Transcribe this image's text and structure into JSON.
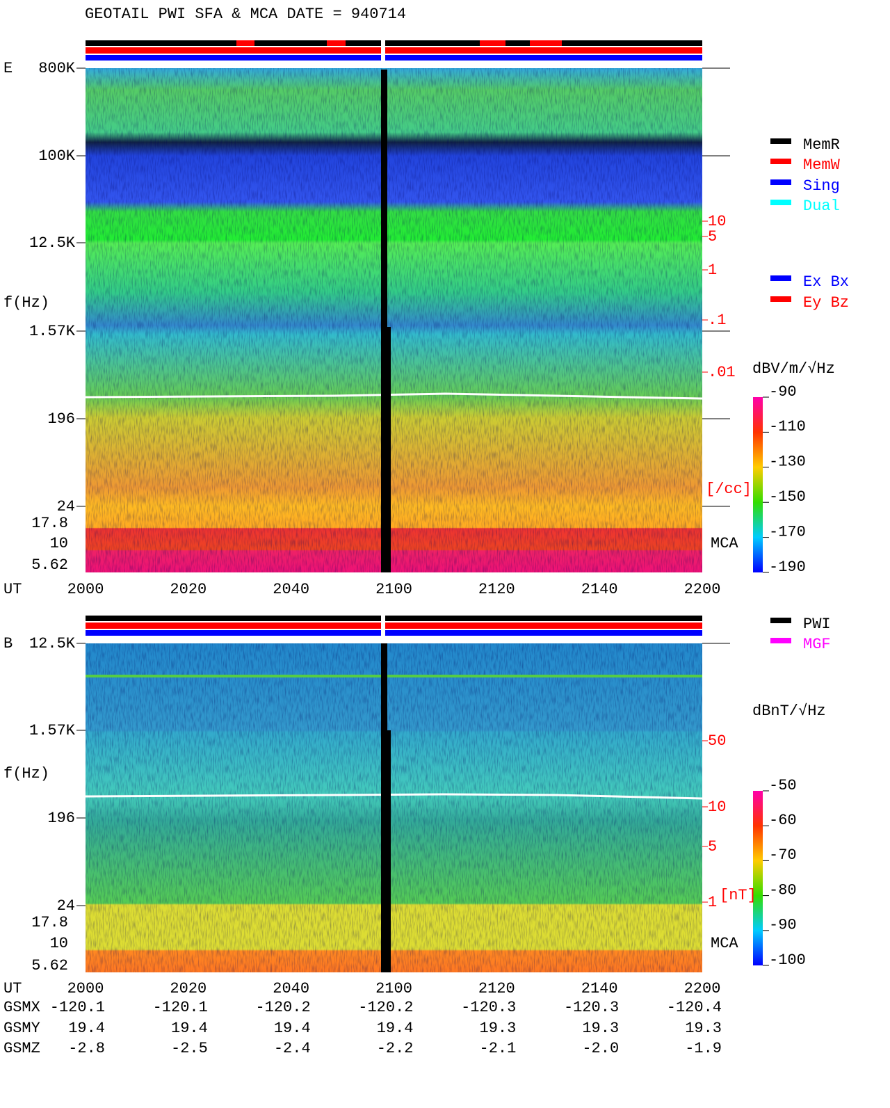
{
  "title": "GEOTAIL   PWI SFA & MCA   DATE = 940714",
  "panels": [
    {
      "label": "E",
      "y_axis_label": "f(Hz)",
      "freq_ticks": [
        "800K",
        "100K",
        "12.5K",
        "1.57K",
        "196",
        "24"
      ],
      "mca_ticks": [
        "17.8",
        "10",
        "5.62"
      ],
      "mca_label": "MCA",
      "x_axis_label": "UT",
      "x_ticks": [
        "2000",
        "2020",
        "2040",
        "2100",
        "2120",
        "2140",
        "2200"
      ],
      "right_ticks": [
        "10",
        "5",
        "1",
        ".1",
        ".01"
      ],
      "right_unit": "[/cc]",
      "colorbar_label": "dBV/m/√Hz",
      "colorbar_ticks": [
        -90,
        -110,
        -130,
        -150,
        -170,
        -190
      ],
      "legend": [
        {
          "name": "MemR",
          "color": "#000000"
        },
        {
          "name": "MemW",
          "color": "#ff0000"
        },
        {
          "name": "Sing",
          "color": "#0000ff"
        },
        {
          "name": "Dual",
          "color": "#00ffff"
        }
      ],
      "legend2": [
        {
          "name": "Ex Bx",
          "color": "#0000ff"
        },
        {
          "name": "Ey Bz",
          "color": "#ff0000"
        }
      ]
    },
    {
      "label": "B",
      "y_axis_label": "f(Hz)",
      "freq_ticks": [
        "12.5K",
        "1.57K",
        "196",
        "24"
      ],
      "mca_ticks": [
        "17.8",
        "10",
        "5.62"
      ],
      "mca_label": "MCA",
      "x_axis_label": "UT",
      "x_ticks": [
        "2000",
        "2020",
        "2040",
        "2100",
        "2120",
        "2140",
        "2200"
      ],
      "right_ticks": [
        "50",
        "10",
        "5",
        "1"
      ],
      "right_unit": "[nT]",
      "colorbar_label": "dBnT/√Hz",
      "colorbar_ticks": [
        -50,
        -60,
        -70,
        -80,
        -90,
        -100
      ],
      "legend": [
        {
          "name": "PWI",
          "color": "#000000"
        },
        {
          "name": "MGF",
          "color": "#ff00ff"
        }
      ]
    }
  ],
  "orbit": [
    {
      "label": "GSMX",
      "values": [
        "-120.1",
        "-120.1",
        "-120.2",
        "-120.2",
        "-120.3",
        "-120.3",
        "-120.4"
      ]
    },
    {
      "label": "GSMY",
      "values": [
        "19.4",
        "19.4",
        "19.4",
        "19.4",
        "19.3",
        "19.3",
        "19.3"
      ]
    },
    {
      "label": "GSMZ",
      "values": [
        "-2.8",
        "-2.5",
        "-2.4",
        "-2.2",
        "-2.1",
        "-2.0",
        "-1.9"
      ]
    }
  ]
}
